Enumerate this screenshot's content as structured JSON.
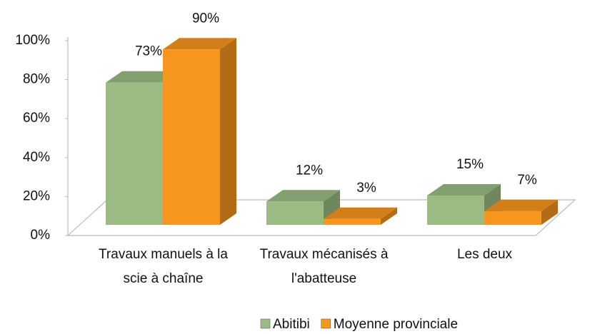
{
  "chart_data": {
    "type": "bar3d",
    "categories": [
      "Travaux manuels à la scie à chaîne",
      "Travaux mécanisés à l'abatteuse",
      "Les deux"
    ],
    "series": [
      {
        "name": "Abitibi",
        "color": "#9bbb83",
        "values": [
          73,
          12,
          15
        ],
        "value_labels": [
          "73%",
          "12%",
          "15%"
        ]
      },
      {
        "name": "Moyenne provinciale",
        "color": "#f7961e",
        "values": [
          90,
          3,
          7
        ],
        "value_labels": [
          "90%",
          "3%",
          "7%"
        ]
      }
    ],
    "ylim": [
      0,
      100
    ],
    "yticks": [
      {
        "value": 0,
        "label": "0%"
      },
      {
        "value": 20,
        "label": "20%"
      },
      {
        "value": 40,
        "label": "40%"
      },
      {
        "value": 60,
        "label": "60%"
      },
      {
        "value": 80,
        "label": "80%"
      },
      {
        "value": 100,
        "label": "100%"
      }
    ],
    "legend": "bottom"
  }
}
